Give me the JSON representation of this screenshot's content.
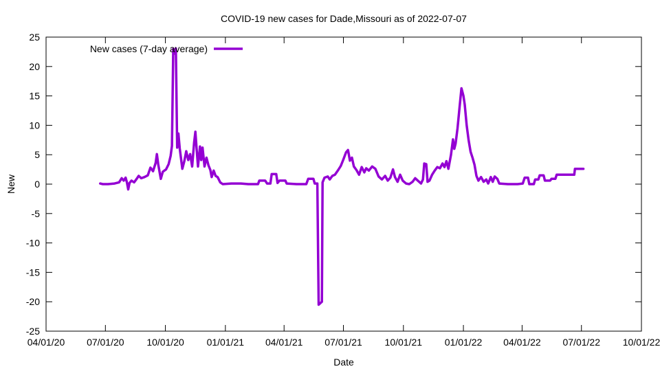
{
  "chart_data": {
    "type": "line",
    "title": "COVID-19 new cases for Dade,Missouri as of 2022-07-07",
    "xlabel": "Date",
    "ylabel": "New",
    "xlim": [
      "2020-04-01",
      "2022-10-01"
    ],
    "ylim": [
      -25,
      25
    ],
    "x_ticks": [
      {
        "date": "2020-04-01",
        "label": "04/01/20"
      },
      {
        "date": "2020-07-01",
        "label": "07/01/20"
      },
      {
        "date": "2020-10-01",
        "label": "10/01/20"
      },
      {
        "date": "2021-01-01",
        "label": "01/01/21"
      },
      {
        "date": "2021-04-01",
        "label": "04/01/21"
      },
      {
        "date": "2021-07-01",
        "label": "07/01/21"
      },
      {
        "date": "2021-10-01",
        "label": "10/01/21"
      },
      {
        "date": "2022-01-01",
        "label": "01/01/22"
      },
      {
        "date": "2022-04-01",
        "label": "04/01/22"
      },
      {
        "date": "2022-07-01",
        "label": "07/01/22"
      },
      {
        "date": "2022-10-01",
        "label": "10/01/22"
      }
    ],
    "y_ticks": [
      -25,
      -20,
      -15,
      -10,
      -5,
      0,
      5,
      10,
      15,
      20,
      25
    ],
    "grid": false,
    "legend_position": "top-left",
    "colors": {
      "series": "#9400d3",
      "axis": "#000000"
    },
    "series": [
      {
        "name": "New cases (7-day average)",
        "points": [
          [
            "2020-06-23",
            0.1
          ],
          [
            "2020-06-27",
            0.0
          ],
          [
            "2020-07-05",
            0.0
          ],
          [
            "2020-07-15",
            0.1
          ],
          [
            "2020-07-22",
            0.3
          ],
          [
            "2020-07-26",
            1.0
          ],
          [
            "2020-07-29",
            0.6
          ],
          [
            "2020-08-01",
            1.1
          ],
          [
            "2020-08-03",
            0.3
          ],
          [
            "2020-08-05",
            -0.9
          ],
          [
            "2020-08-07",
            0.2
          ],
          [
            "2020-08-10",
            0.6
          ],
          [
            "2020-08-14",
            0.3
          ],
          [
            "2020-08-18",
            0.9
          ],
          [
            "2020-08-21",
            1.4
          ],
          [
            "2020-08-25",
            1.0
          ],
          [
            "2020-08-30",
            1.2
          ],
          [
            "2020-09-04",
            1.5
          ],
          [
            "2020-09-08",
            2.8
          ],
          [
            "2020-09-12",
            2.2
          ],
          [
            "2020-09-16",
            3.6
          ],
          [
            "2020-09-18",
            5.1
          ],
          [
            "2020-09-20",
            3.4
          ],
          [
            "2020-09-24",
            0.9
          ],
          [
            "2020-09-27",
            2.1
          ],
          [
            "2020-10-02",
            2.5
          ],
          [
            "2020-10-06",
            3.4
          ],
          [
            "2020-10-09",
            4.8
          ],
          [
            "2020-10-11",
            6.5
          ],
          [
            "2020-10-13",
            23.0
          ],
          [
            "2020-10-15",
            22.2
          ],
          [
            "2020-10-17",
            23.1
          ],
          [
            "2020-10-19",
            6.2
          ],
          [
            "2020-10-21",
            8.6
          ],
          [
            "2020-10-23",
            6.1
          ],
          [
            "2020-10-27",
            2.6
          ],
          [
            "2020-10-30",
            3.9
          ],
          [
            "2020-11-02",
            5.6
          ],
          [
            "2020-11-05",
            4.1
          ],
          [
            "2020-11-08",
            5.1
          ],
          [
            "2020-11-11",
            3.0
          ],
          [
            "2020-11-14",
            7.0
          ],
          [
            "2020-11-16",
            8.9
          ],
          [
            "2020-11-18",
            5.8
          ],
          [
            "2020-11-20",
            3.0
          ],
          [
            "2020-11-23",
            6.4
          ],
          [
            "2020-11-25",
            4.1
          ],
          [
            "2020-11-27",
            6.2
          ],
          [
            "2020-11-30",
            3.0
          ],
          [
            "2020-12-03",
            4.5
          ],
          [
            "2020-12-06",
            3.2
          ],
          [
            "2020-12-09",
            2.4
          ],
          [
            "2020-12-11",
            1.2
          ],
          [
            "2020-12-14",
            2.3
          ],
          [
            "2020-12-17",
            1.4
          ],
          [
            "2020-12-20",
            1.2
          ],
          [
            "2020-12-24",
            0.3
          ],
          [
            "2020-12-28",
            0.0
          ],
          [
            "2021-01-10",
            0.1
          ],
          [
            "2021-01-25",
            0.1
          ],
          [
            "2021-02-05",
            0.0
          ],
          [
            "2021-02-20",
            0.0
          ],
          [
            "2021-02-22",
            0.6
          ],
          [
            "2021-03-03",
            0.6
          ],
          [
            "2021-03-06",
            0.1
          ],
          [
            "2021-03-11",
            0.1
          ],
          [
            "2021-03-13",
            1.7
          ],
          [
            "2021-03-20",
            1.7
          ],
          [
            "2021-03-22",
            0.2
          ],
          [
            "2021-03-25",
            0.6
          ],
          [
            "2021-04-03",
            0.6
          ],
          [
            "2021-04-05",
            0.1
          ],
          [
            "2021-04-20",
            0.0
          ],
          [
            "2021-05-05",
            0.0
          ],
          [
            "2021-05-08",
            0.9
          ],
          [
            "2021-05-16",
            0.9
          ],
          [
            "2021-05-18",
            0.1
          ],
          [
            "2021-05-22",
            0.1
          ],
          [
            "2021-05-24",
            -20.5
          ],
          [
            "2021-05-29",
            -20.0
          ],
          [
            "2021-05-30",
            0.3
          ],
          [
            "2021-06-02",
            1.1
          ],
          [
            "2021-06-07",
            1.3
          ],
          [
            "2021-06-10",
            0.8
          ],
          [
            "2021-06-14",
            1.4
          ],
          [
            "2021-06-18",
            1.6
          ],
          [
            "2021-06-23",
            2.4
          ],
          [
            "2021-06-27",
            3.1
          ],
          [
            "2021-07-01",
            4.2
          ],
          [
            "2021-07-05",
            5.4
          ],
          [
            "2021-07-08",
            5.8
          ],
          [
            "2021-07-11",
            4.0
          ],
          [
            "2021-07-14",
            4.5
          ],
          [
            "2021-07-17",
            3.0
          ],
          [
            "2021-07-21",
            2.4
          ],
          [
            "2021-07-25",
            1.6
          ],
          [
            "2021-07-29",
            2.9
          ],
          [
            "2021-08-02",
            2.0
          ],
          [
            "2021-08-05",
            2.7
          ],
          [
            "2021-08-09",
            2.3
          ],
          [
            "2021-08-14",
            3.0
          ],
          [
            "2021-08-19",
            2.6
          ],
          [
            "2021-08-24",
            1.3
          ],
          [
            "2021-08-29",
            0.8
          ],
          [
            "2021-09-03",
            1.4
          ],
          [
            "2021-09-07",
            0.6
          ],
          [
            "2021-09-11",
            1.1
          ],
          [
            "2021-09-15",
            2.5
          ],
          [
            "2021-09-18",
            1.2
          ],
          [
            "2021-09-22",
            0.4
          ],
          [
            "2021-09-26",
            1.6
          ],
          [
            "2021-09-30",
            0.6
          ],
          [
            "2021-10-05",
            0.1
          ],
          [
            "2021-10-10",
            0.0
          ],
          [
            "2021-10-15",
            0.4
          ],
          [
            "2021-10-19",
            1.0
          ],
          [
            "2021-10-24",
            0.5
          ],
          [
            "2021-10-28",
            0.1
          ],
          [
            "2021-10-31",
            0.8
          ],
          [
            "2021-11-02",
            3.5
          ],
          [
            "2021-11-05",
            3.4
          ],
          [
            "2021-11-07",
            0.4
          ],
          [
            "2021-11-10",
            0.6
          ],
          [
            "2021-11-14",
            1.6
          ],
          [
            "2021-11-18",
            2.3
          ],
          [
            "2021-11-22",
            2.9
          ],
          [
            "2021-11-26",
            2.7
          ],
          [
            "2021-11-30",
            3.5
          ],
          [
            "2021-12-03",
            2.9
          ],
          [
            "2021-12-06",
            3.9
          ],
          [
            "2021-12-09",
            2.6
          ],
          [
            "2021-12-13",
            5.0
          ],
          [
            "2021-12-16",
            7.6
          ],
          [
            "2021-12-18",
            6.0
          ],
          [
            "2021-12-20",
            6.9
          ],
          [
            "2021-12-23",
            9.5
          ],
          [
            "2021-12-26",
            13.0
          ],
          [
            "2021-12-29",
            16.3
          ],
          [
            "2022-01-01",
            15.0
          ],
          [
            "2022-01-03",
            13.5
          ],
          [
            "2022-01-06",
            10.0
          ],
          [
            "2022-01-09",
            7.5
          ],
          [
            "2022-01-12",
            5.5
          ],
          [
            "2022-01-15",
            4.5
          ],
          [
            "2022-01-18",
            3.3
          ],
          [
            "2022-01-21",
            1.4
          ],
          [
            "2022-01-24",
            0.6
          ],
          [
            "2022-01-28",
            1.2
          ],
          [
            "2022-02-01",
            0.4
          ],
          [
            "2022-02-05",
            0.8
          ],
          [
            "2022-02-08",
            0.1
          ],
          [
            "2022-02-12",
            1.2
          ],
          [
            "2022-02-15",
            0.4
          ],
          [
            "2022-02-18",
            1.3
          ],
          [
            "2022-02-22",
            0.9
          ],
          [
            "2022-02-25",
            0.1
          ],
          [
            "2022-03-10",
            0.0
          ],
          [
            "2022-03-25",
            0.0
          ],
          [
            "2022-04-02",
            0.1
          ],
          [
            "2022-04-05",
            1.1
          ],
          [
            "2022-04-10",
            1.1
          ],
          [
            "2022-04-12",
            0.0
          ],
          [
            "2022-04-19",
            0.0
          ],
          [
            "2022-04-21",
            0.8
          ],
          [
            "2022-04-26",
            0.8
          ],
          [
            "2022-04-28",
            1.5
          ],
          [
            "2022-05-04",
            1.5
          ],
          [
            "2022-05-06",
            0.6
          ],
          [
            "2022-05-14",
            0.6
          ],
          [
            "2022-05-16",
            0.9
          ],
          [
            "2022-05-22",
            0.9
          ],
          [
            "2022-05-24",
            1.6
          ],
          [
            "2022-06-20",
            1.6
          ],
          [
            "2022-06-21",
            2.6
          ],
          [
            "2022-07-04",
            2.6
          ]
        ]
      }
    ]
  }
}
